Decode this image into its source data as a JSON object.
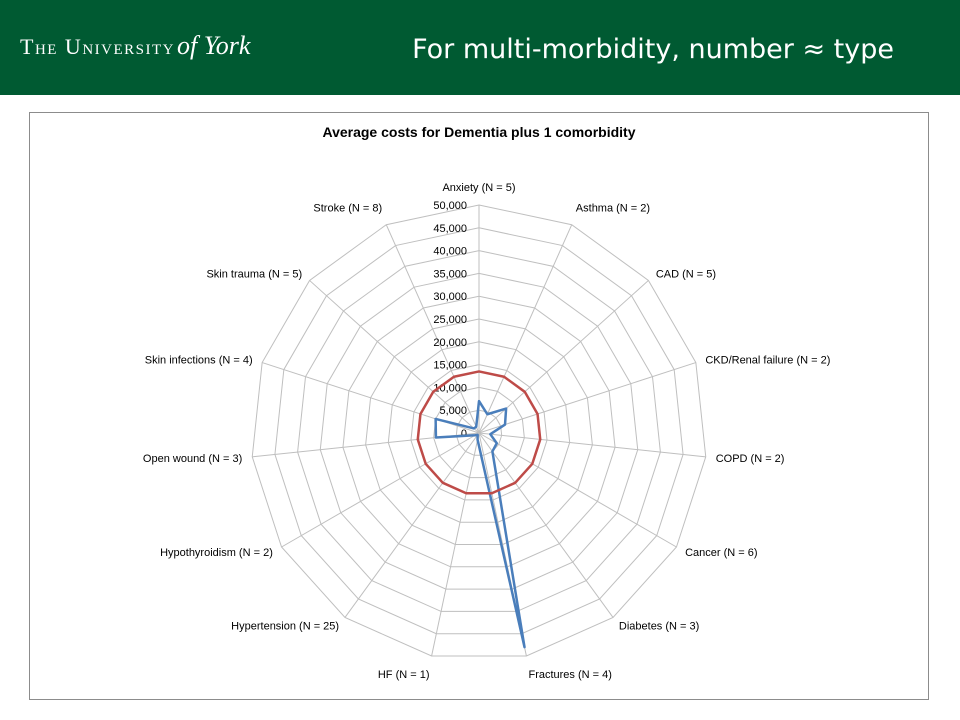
{
  "header": {
    "logo_main": "The University",
    "logo_italic": "of York",
    "title": "For multi-morbidity, number ≈ type"
  },
  "colors": {
    "header_bg": "#005a32",
    "series_blue": "#4a7ebb",
    "series_red": "#be4b48",
    "grid": "#bfbfbf"
  },
  "chart_data": {
    "type": "radar",
    "title": "Average costs for Dementia plus 1 comorbidity",
    "categories": [
      "Anxiety (N = 5)",
      "Asthma (N = 2)",
      "CAD (N = 5)",
      "CKD/Renal failure (N = 2)",
      "COPD (N = 2)",
      "Cancer (N = 6)",
      "Diabetes (N = 3)",
      "Fractures (N = 4)",
      "HF (N = 1)",
      "Hypertension (N = 25)",
      "Hypothyroidism (N = 2)",
      "Open wound (N = 3)",
      "Skin infections (N = 4)",
      "Skin trauma (N = 5)",
      "Stroke (N = 8)"
    ],
    "ticks": [
      "0",
      "5,000",
      "10,000",
      "15,000",
      "20,000",
      "25,000",
      "30,000",
      "35,000",
      "40,000",
      "45,000",
      "50,000"
    ],
    "rmin": 0,
    "rmax": 50000,
    "grid": true,
    "legend": "none",
    "series": [
      {
        "values": [
          7000,
          4500,
          8000,
          6000,
          2500,
          4500,
          5000,
          48000,
          1500,
          500,
          1000,
          9500,
          10000,
          1500,
          1500
        ]
      },
      {
        "values": [
          13500,
          13500,
          13500,
          13500,
          13500,
          13500,
          13500,
          13500,
          13500,
          13500,
          13500,
          13500,
          13500,
          13500,
          13500
        ]
      }
    ]
  }
}
